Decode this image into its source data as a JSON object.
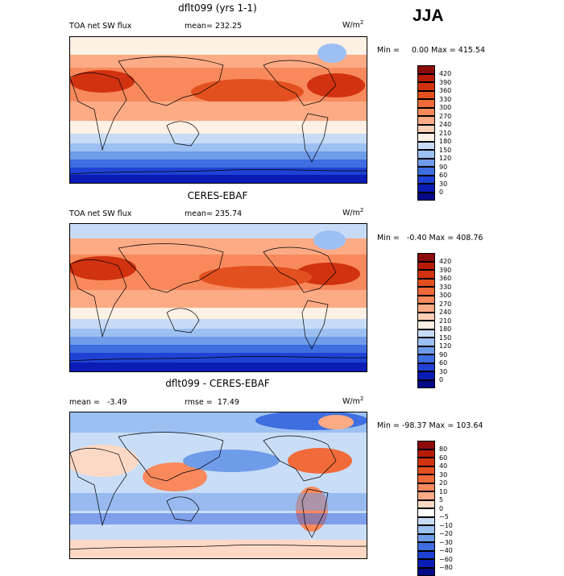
{
  "season": "JJA",
  "panels": [
    {
      "title": "dflt099 (yrs 1-1)",
      "left_label": "TOA net SW flux",
      "stat_label": "mean=",
      "stat_value": "232.25",
      "units_base": "W/m",
      "units_exp": "2",
      "min_label": "Min =",
      "min_value": "0.00",
      "max_label": "Max =",
      "max_value": "415.54",
      "colorbar": {
        "levels": [
          "420",
          "390",
          "360",
          "330",
          "300",
          "270",
          "240",
          "210",
          "180",
          "150",
          "120",
          "90",
          "60",
          "30",
          "0"
        ],
        "colors": [
          "#8b0b0b",
          "#b71b05",
          "#d13210",
          "#e3501f",
          "#f16a3a",
          "#f8895c",
          "#fcab85",
          "#fdd0b8",
          "#fdf0e4",
          "#c7dbf6",
          "#9dc0f2",
          "#6f9ce8",
          "#3f6ee0",
          "#1f42d4",
          "#0a1cb4",
          "#040a86"
        ]
      }
    },
    {
      "title": "CERES-EBAF",
      "left_label": "TOA net SW flux",
      "stat_label": "mean=",
      "stat_value": "235.74",
      "units_base": "W/m",
      "units_exp": "2",
      "min_label": "Min =",
      "min_value": "-0.40",
      "max_label": "Max =",
      "max_value": "408.76",
      "colorbar": {
        "levels": [
          "420",
          "390",
          "360",
          "330",
          "300",
          "270",
          "240",
          "210",
          "180",
          "150",
          "120",
          "90",
          "60",
          "30",
          "0"
        ],
        "colors": [
          "#8b0b0b",
          "#b71b05",
          "#d13210",
          "#e3501f",
          "#f16a3a",
          "#f8895c",
          "#fcab85",
          "#fdd0b8",
          "#fdf0e4",
          "#c7dbf6",
          "#9dc0f2",
          "#6f9ce8",
          "#3f6ee0",
          "#1f42d4",
          "#0a1cb4",
          "#040a86"
        ]
      }
    },
    {
      "title": "dflt099 - CERES-EBAF",
      "left_label": "mean =",
      "left_value": "-3.49",
      "stat_label": "rmse =",
      "stat_value": "17.49",
      "units_base": "W/m",
      "units_exp": "2",
      "min_label": "Min =",
      "min_value": "-98.37",
      "max_label": "Max =",
      "max_value": "103.64",
      "colorbar": {
        "levels": [
          "80",
          "60",
          "40",
          "30",
          "20",
          "10",
          "5",
          "0",
          "−5",
          "−10",
          "−20",
          "−30",
          "−40",
          "−60",
          "−80"
        ],
        "colors": [
          "#8b0b0b",
          "#b71b05",
          "#d13210",
          "#e3501f",
          "#f16a3a",
          "#f8895c",
          "#fcab85",
          "#fdd9c5",
          "#ffffff",
          "#c9ddf7",
          "#9dc0f2",
          "#6f9ce8",
          "#3f6ee0",
          "#1f42d4",
          "#0a1cb4",
          "#040a86"
        ]
      }
    }
  ]
}
